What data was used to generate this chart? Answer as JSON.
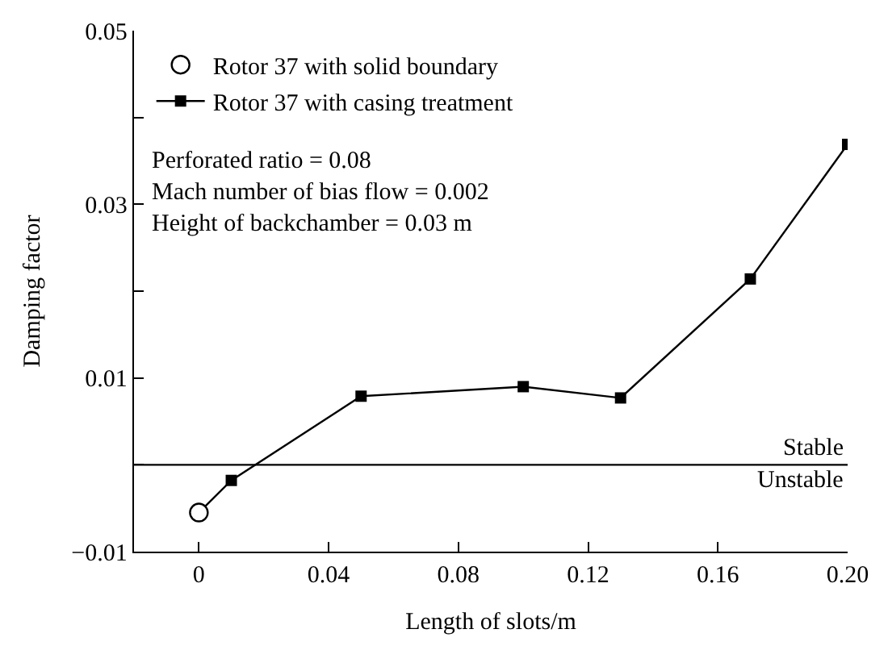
{
  "chart_data": {
    "type": "line",
    "xlabel": "Length of slots/m",
    "ylabel": "Damping factor",
    "xlim": [
      -0.02,
      0.2
    ],
    "xticks": [
      0,
      0.04,
      0.08,
      0.12,
      0.16,
      {
        "value": 0.2,
        "label": "0.20"
      }
    ],
    "ylim": [
      -0.01,
      0.05
    ],
    "yticks": [
      {
        "value": -0.01,
        "label": "−0.01"
      },
      {
        "value": 0,
        "label": null
      },
      0.01,
      {
        "value": 0.02,
        "label": null
      },
      0.03,
      {
        "value": 0.04,
        "label": null
      },
      0.05
    ],
    "grid": false,
    "legend": "top left",
    "series": [
      {
        "name": "Rotor 37 with casing treatment",
        "color": "#000000",
        "marker": "square",
        "line_style": "solid",
        "x": [
          0,
          0.01,
          0.05,
          0.1,
          0.13,
          0.17,
          0.2
        ],
        "values": [
          -0.0055,
          -0.0018,
          0.0079,
          0.009,
          0.0077,
          0.0214,
          0.0369
        ]
      },
      {
        "name": "Rotor 37 with solid boundary",
        "type": "scatter",
        "color": "#000000",
        "marker": "circle",
        "x": [
          0
        ],
        "values": [
          -0.0055
        ]
      }
    ],
    "ref_lines": [
      {
        "axis": "y",
        "value": 0,
        "color": "#000000",
        "line_style": "solid"
      }
    ],
    "annotations": [
      "Perforated ratio = 0.08\nMach number of bias flow = 0.002\nHeight of backchamber = 0.03 m",
      {
        "text": "Stable",
        "x": 0.2,
        "y": 0
      },
      {
        "text": "Unstable",
        "x": 0.2,
        "y": 0
      }
    ]
  }
}
